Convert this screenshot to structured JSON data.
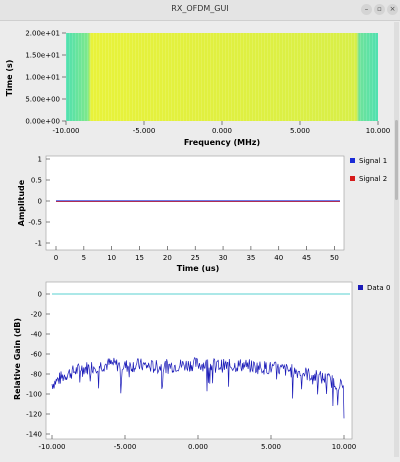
{
  "window": {
    "title": "RX_OFDM_GUI",
    "minimize_glyph": "–",
    "maximize_glyph": "▫",
    "close_glyph": "×"
  },
  "waterfall": {
    "ylabel": "Time (s)",
    "xlabel": "Frequency (MHz)",
    "yticks": [
      "2.00e+01",
      "1.50e+01",
      "1.00e+01",
      "5.00e+00",
      "0.00e+00"
    ],
    "xticks": [
      "-10.000",
      "-5.000",
      "0.000",
      "5.000",
      "10.000"
    ]
  },
  "time_plot": {
    "ylabel": "Amplitude",
    "xlabel": "Time (us)",
    "yticks": [
      "1",
      "0.5",
      "0",
      "-0.5",
      "-1"
    ],
    "xticks": [
      "0",
      "5",
      "10",
      "15",
      "20",
      "25",
      "30",
      "35",
      "40",
      "45",
      "50"
    ],
    "legend": [
      {
        "name": "Signal 1",
        "color": "#1a2bd6"
      },
      {
        "name": "Signal 2",
        "color": "#d61a1a"
      }
    ]
  },
  "freq_plot": {
    "ylabel": "Relative Gain (dB)",
    "yticks": [
      "0",
      "-20",
      "-40",
      "-60",
      "-80",
      "-100",
      "-120",
      "-140"
    ],
    "xticks": [
      "-10.000",
      "-5.000",
      "0.000",
      "5.000",
      "10.000"
    ],
    "legend": [
      {
        "name": "Data 0",
        "color": "#1a1ab8"
      }
    ]
  },
  "chart_data": [
    {
      "type": "heatmap",
      "xlabel": "Frequency (MHz)",
      "ylabel": "Time (s)",
      "xlim": [
        -10,
        10
      ],
      "ylim": [
        0,
        20
      ],
      "colors": [
        "#e8f23a",
        "#4fe0b0"
      ]
    },
    {
      "type": "line",
      "xlabel": "Time (us)",
      "ylabel": "Amplitude",
      "xlim": [
        0,
        51
      ],
      "ylim": [
        -1,
        1
      ],
      "series": [
        {
          "name": "Signal 1",
          "level": 0.0
        },
        {
          "name": "Signal 2",
          "level": 0.0
        }
      ]
    },
    {
      "type": "line",
      "ylabel": "Relative Gain (dB)",
      "xlim": [
        -10,
        10
      ],
      "ylim": [
        -145,
        5
      ],
      "reference_level": 0,
      "series": [
        {
          "name": "Data 0",
          "x": [
            -10,
            -9,
            -8,
            -7,
            -6,
            -5,
            -4,
            -3,
            -2,
            -1,
            0,
            1,
            2,
            3,
            4,
            5,
            6,
            7,
            8,
            9,
            10
          ],
          "y": [
            -90,
            -80,
            -75,
            -72,
            -70,
            -72,
            -71,
            -73,
            -72,
            -71,
            -70,
            -71,
            -72,
            -71,
            -73,
            -74,
            -76,
            -78,
            -82,
            -86,
            -93
          ]
        }
      ]
    }
  ]
}
